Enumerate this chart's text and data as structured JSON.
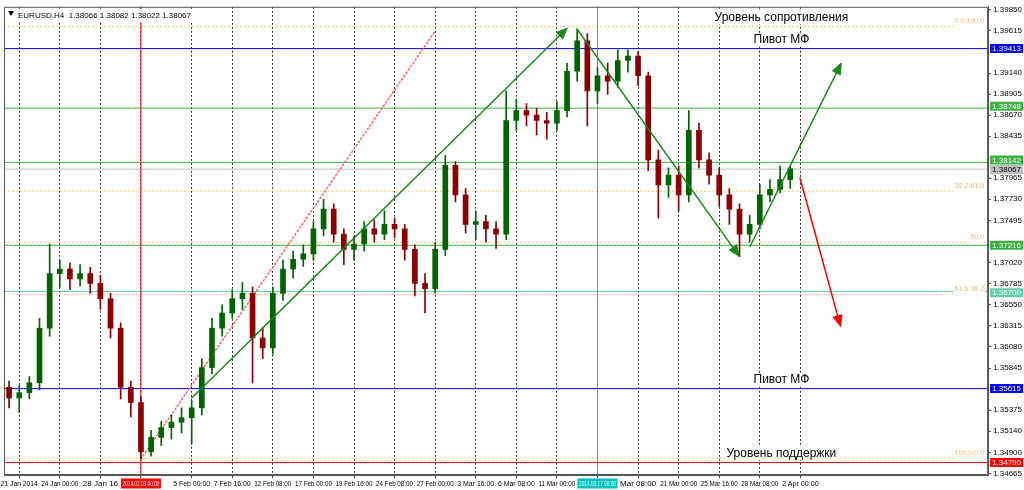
{
  "chart_data": {
    "type": "candlestick",
    "title": "EURUSD.H4  1.38066 1.38082 1.38022 1.38067",
    "categories": [
      null,
      "21 Jan 2014",
      null,
      null,
      null,
      "24 Jan 00:00",
      null,
      null,
      null,
      "28 Jan 16",
      null,
      null,
      null,
      "2014.02.03 00:00",
      null,
      null,
      null,
      null,
      "5 Feb 00:00",
      null,
      null,
      null,
      "7 Feb 16:00",
      null,
      null,
      null,
      "12 Feb 08:00",
      null,
      null,
      null,
      "17 Feb 00:00",
      null,
      null,
      null,
      "19 Feb 16:00",
      null,
      null,
      null,
      "24 Feb 08:00",
      null,
      null,
      null,
      "27 Feb 00:00",
      null,
      null,
      null,
      "3 Mar 16:00",
      null,
      null,
      null,
      "6 Mar 08:00",
      null,
      null,
      null,
      "11 Mar 00:00",
      null,
      null,
      null,
      "2014.03.17 00:00",
      null,
      null,
      null,
      "Mar 08:00",
      null,
      null,
      null,
      "21 Mar 00:00",
      null,
      null,
      null,
      "25 Mar 16:00",
      null,
      null,
      null,
      "28 Mar 08:00",
      null,
      null,
      null,
      "2 Apr 00:00",
      null,
      null,
      null,
      null,
      null,
      null,
      null,
      null,
      null,
      null,
      null,
      null,
      null,
      null,
      null,
      null,
      null,
      null
    ],
    "series": [
      {
        "type": "line",
        "color": "#ff6060",
        "line_style": "dotted",
        "values": [
          null,
          null,
          null,
          null,
          null,
          null,
          null,
          null,
          null,
          null,
          null,
          null,
          null,
          1.3483,
          null,
          null,
          null,
          null,
          null,
          null,
          null,
          null,
          null,
          null,
          null,
          null,
          null,
          null,
          null,
          null,
          null,
          null,
          null,
          null,
          null,
          null,
          null,
          null,
          null,
          null,
          null,
          null,
          1.3961,
          null,
          null,
          null,
          null,
          null,
          null,
          null,
          null,
          null,
          null,
          null,
          null,
          null,
          null,
          null,
          null,
          null,
          null,
          null,
          null,
          null,
          null,
          null,
          null,
          null,
          null,
          null,
          null,
          null,
          null,
          null,
          null,
          null,
          null,
          null,
          null,
          null,
          null,
          null,
          null,
          null,
          null,
          null,
          null,
          null,
          null,
          null,
          null,
          null,
          null,
          null,
          null,
          null,
          null
        ]
      },
      {
        "colors": [
          "#8b0000",
          "#006400",
          "#006400",
          "#006400",
          "#006400",
          "#006400",
          "#8b0000",
          "#006400",
          "#8b0000",
          "#8b0000",
          "#8b0000",
          "#8b0000",
          "#8b0000",
          "#8b0000",
          "#006400",
          "#006400",
          "#006400",
          "#006400",
          "#006400",
          "#006400",
          "#006400",
          "#006400",
          "#006400",
          "#006400",
          "#8b0000",
          "#8b0000",
          "#006400",
          "#006400",
          "#006400",
          "#006400",
          "#006400",
          "#006400",
          "#8b0000",
          "#8b0000",
          "#006400",
          "#006400",
          "#8b0000",
          "#006400",
          "#8b0000",
          "#8b0000",
          "#8b0000",
          "#8b0000",
          "#006400",
          "#006400",
          "#8b0000",
          "#8b0000",
          "#006400",
          "#8b0000",
          "#8b0000",
          "#006400",
          "#006400",
          "#8b0000",
          "#8b0000",
          "#8b0000",
          "#006400",
          "#006400",
          "#006400",
          "#8b0000",
          "#006400",
          "#8b0000",
          "#006400",
          "#006400",
          "#8b0000",
          "#8b0000",
          "#8b0000",
          "#006400",
          "#8b0000",
          "#006400",
          "#8b0000",
          "#8b0000",
          "#8b0000",
          "#8b0000",
          "#8b0000",
          "#006400",
          "#006400",
          "#006400",
          "#006400",
          "#006400",
          null,
          null,
          null,
          null,
          null,
          null,
          null,
          null,
          null,
          null,
          null,
          null,
          null,
          null,
          null,
          null,
          null,
          null,
          null
        ],
        "ohlc": [
          [
            1.3563,
            1.357,
            1.354,
            1.3551
          ],
          [
            1.3551,
            1.3565,
            1.3535,
            1.3557
          ],
          [
            1.3557,
            1.3575,
            1.355,
            1.3568
          ],
          [
            1.3568,
            1.364,
            1.356,
            1.3629
          ],
          [
            1.3629,
            1.3723,
            1.362,
            1.369
          ],
          [
            1.369,
            1.3705,
            1.3675,
            1.3695
          ],
          [
            1.3695,
            1.3702,
            1.3672,
            1.3684
          ],
          [
            1.3684,
            1.37,
            1.3676,
            1.369
          ],
          [
            1.369,
            1.3697,
            1.3668,
            1.3679
          ],
          [
            1.3679,
            1.3688,
            1.365,
            1.3662
          ],
          [
            1.3662,
            1.3668,
            1.3618,
            1.3629
          ],
          [
            1.3629,
            1.3635,
            1.355,
            1.3563
          ],
          [
            1.3563,
            1.357,
            1.353,
            1.3546
          ],
          [
            1.3546,
            1.3552,
            1.3483,
            1.3491
          ],
          [
            1.3491,
            1.3515,
            1.3486,
            1.3507
          ],
          [
            1.3507,
            1.3525,
            1.3498,
            1.3518
          ],
          [
            1.3518,
            1.3532,
            1.3505,
            1.3524
          ],
          [
            1.3524,
            1.354,
            1.3512,
            1.3529
          ],
          [
            1.3529,
            1.3548,
            1.35,
            1.354
          ],
          [
            1.354,
            1.3595,
            1.3532,
            1.3585
          ],
          [
            1.3585,
            1.364,
            1.3578,
            1.3629
          ],
          [
            1.3629,
            1.3655,
            1.362,
            1.3646
          ],
          [
            1.3646,
            1.3672,
            1.364,
            1.3662
          ],
          [
            1.3662,
            1.368,
            1.365,
            1.3668
          ],
          [
            1.3668,
            1.3675,
            1.3568,
            1.3618
          ],
          [
            1.3618,
            1.363,
            1.3595,
            1.3607
          ],
          [
            1.3607,
            1.3675,
            1.36,
            1.3668
          ],
          [
            1.3668,
            1.3705,
            1.366,
            1.3695
          ],
          [
            1.3695,
            1.3715,
            1.3685,
            1.3706
          ],
          [
            1.3706,
            1.3722,
            1.3698,
            1.3712
          ],
          [
            1.3712,
            1.3748,
            1.3705,
            1.374
          ],
          [
            1.374,
            1.3773,
            1.3732,
            1.3762
          ],
          [
            1.3762,
            1.3768,
            1.3725,
            1.3734
          ],
          [
            1.3734,
            1.374,
            1.37,
            1.3717
          ],
          [
            1.3717,
            1.3732,
            1.3705,
            1.3723
          ],
          [
            1.3723,
            1.3748,
            1.3715,
            1.374
          ],
          [
            1.374,
            1.375,
            1.3725,
            1.3734
          ],
          [
            1.3734,
            1.376,
            1.3728,
            1.3745
          ],
          [
            1.3745,
            1.3752,
            1.373,
            1.374
          ],
          [
            1.374,
            1.3745,
            1.3705,
            1.3717
          ],
          [
            1.3717,
            1.3722,
            1.3665,
            1.3679
          ],
          [
            1.3679,
            1.369,
            1.3646,
            1.3673
          ],
          [
            1.3673,
            1.3725,
            1.3668,
            1.3717
          ],
          [
            1.3717,
            1.3822,
            1.371,
            1.3811
          ],
          [
            1.3811,
            1.3815,
            1.377,
            1.3778
          ],
          [
            1.3778,
            1.3785,
            1.3735,
            1.3745
          ],
          [
            1.3745,
            1.376,
            1.3728,
            1.3748
          ],
          [
            1.3748,
            1.3755,
            1.3725,
            1.374
          ],
          [
            1.374,
            1.3748,
            1.3718,
            1.3734
          ],
          [
            1.3734,
            1.3894,
            1.3728,
            1.3861
          ],
          [
            1.3861,
            1.3885,
            1.385,
            1.3872
          ],
          [
            1.3872,
            1.388,
            1.3855,
            1.3867
          ],
          [
            1.3867,
            1.3875,
            1.3845,
            1.3861
          ],
          [
            1.3861,
            1.387,
            1.384,
            1.3858
          ],
          [
            1.3858,
            1.3882,
            1.385,
            1.3872
          ],
          [
            1.3872,
            1.3925,
            1.3865,
            1.3916
          ],
          [
            1.3916,
            1.3963,
            1.3905,
            1.395
          ],
          [
            1.395,
            1.3958,
            1.3855,
            1.3894
          ],
          [
            1.3894,
            1.392,
            1.388,
            1.3911
          ],
          [
            1.3911,
            1.3925,
            1.389,
            1.3905
          ],
          [
            1.3905,
            1.394,
            1.3898,
            1.3928
          ],
          [
            1.3928,
            1.394,
            1.3915,
            1.3933
          ],
          [
            1.3933,
            1.3938,
            1.39,
            1.3911
          ],
          [
            1.3911,
            1.3915,
            1.3805,
            1.3817
          ],
          [
            1.3817,
            1.3828,
            1.3752,
            1.3789
          ],
          [
            1.3789,
            1.3808,
            1.3775,
            1.38
          ],
          [
            1.38,
            1.381,
            1.376,
            1.3778
          ],
          [
            1.3778,
            1.3872,
            1.377,
            1.385
          ],
          [
            1.385,
            1.3858,
            1.3808,
            1.3817
          ],
          [
            1.3817,
            1.3825,
            1.379,
            1.38
          ],
          [
            1.38,
            1.3808,
            1.3765,
            1.3778
          ],
          [
            1.3778,
            1.3785,
            1.3745,
            1.3762
          ],
          [
            1.3762,
            1.3768,
            1.3709,
            1.3734
          ],
          [
            1.3734,
            1.3755,
            1.3725,
            1.3745
          ],
          [
            1.3745,
            1.379,
            1.374,
            1.3778
          ],
          [
            1.3778,
            1.3795,
            1.377,
            1.3784
          ],
          [
            1.3784,
            1.381,
            1.378,
            1.3795
          ],
          [
            1.3795,
            1.381,
            1.3785,
            1.3807
          ],
          null,
          null,
          null,
          null,
          null,
          null,
          null,
          null,
          null,
          null,
          null,
          null,
          null,
          null,
          null,
          null,
          null,
          null,
          null
        ]
      }
    ],
    "ylim": [
      1.3465,
      1.3988
    ],
    "yticks": [
      {
        "value": 1.3985,
        "label": "1.39850"
      },
      {
        "value": 1.39615,
        "label": "1.39615"
      },
      {
        "value": 1.3914,
        "label": "1.39140"
      },
      {
        "value": 1.38905,
        "label": "1.38905"
      },
      {
        "value": 1.3867,
        "label": "1.38670"
      },
      {
        "value": 1.38435,
        "label": "1.38435"
      },
      {
        "value": 1.37965,
        "label": "1.37965"
      },
      {
        "value": 1.3773,
        "label": "1.37730"
      },
      {
        "value": 1.37495,
        "label": "1.37495"
      },
      {
        "value": 1.3702,
        "label": "1.37020"
      },
      {
        "value": 1.36785,
        "label": "1.36785"
      },
      {
        "value": 1.3655,
        "label": "1.36550"
      },
      {
        "value": 1.36315,
        "label": "1.36315"
      },
      {
        "value": 1.3608,
        "label": "1.36080"
      },
      {
        "value": 1.35845,
        "label": "1.35845"
      },
      {
        "value": 1.35375,
        "label": "1.35375"
      },
      {
        "value": 1.3514,
        "label": "1.35140"
      },
      {
        "value": 1.349,
        "label": "1.34900"
      },
      {
        "value": 1.34665,
        "label": "1.34665"
      }
    ],
    "ref_lines": [
      {
        "axis": "y",
        "value": 1.3966,
        "color": "#f0c060",
        "line_style": "dotted"
      },
      {
        "axis": "y",
        "value": 1.3782,
        "color": "#f0c060",
        "line_style": "dotted"
      },
      {
        "axis": "y",
        "value": 1.3725,
        "color": "#f0c060",
        "line_style": "dotted"
      },
      {
        "axis": "y",
        "value": 1.3667,
        "color": "#f0c060",
        "line_style": "dotted"
      },
      {
        "axis": "y",
        "value": 1.3484,
        "color": "#f0c060",
        "line_style": "dotted"
      },
      {
        "axis": "y",
        "value": 1.39413,
        "label": "1.39413",
        "color": "#0000ff"
      },
      {
        "axis": "y",
        "value": 1.38748,
        "label": "1.38748",
        "color": "#3cb043"
      },
      {
        "axis": "y",
        "value": 1.38142,
        "label": "1.38142",
        "color": "#3cb043"
      },
      {
        "axis": "y",
        "value": 1.38067,
        "label": "1.38067",
        "color": "#c0c0c0"
      },
      {
        "axis": "y",
        "value": 1.37216,
        "label": "1.37216",
        "color": "#3cb043"
      },
      {
        "axis": "y",
        "value": 1.367,
        "label": "1.36700",
        "color": "#66cdaa"
      },
      {
        "axis": "y",
        "value": 1.35615,
        "label": "1.35615",
        "color": "#0000ff"
      },
      {
        "axis": "y",
        "value": 1.3479,
        "label": "1.34790",
        "color": "#ff0000"
      },
      {
        "axis": "x",
        "value": "2014.02.03 00:00",
        "color": "#ff0000"
      },
      {
        "axis": "x",
        "value": "2014.03.17 00:00",
        "color": "#00c0c0"
      }
    ],
    "annotations": [
      "Уровень сопротивления",
      {
        "text": "0.0-100.0",
        "y": 1.3966
      },
      {
        "text": "38.2-61.8",
        "y": 1.3782
      },
      {
        "text": "50.0",
        "y": 1.3725
      },
      {
        "text": "61.8-38.2",
        "y": 1.3667
      },
      {
        "text": "100.0-0.0",
        "y": 1.3484
      },
      {
        "text": "Пивот МФ",
        "y": 1.39413
      },
      {
        "text": "Пивот МФ",
        "y": 1.35615
      },
      {
        "text": "Уровень поддержки",
        "y": 1.3479
      }
    ],
    "grid": "x",
    "legend": false,
    "marker": "none"
  }
}
